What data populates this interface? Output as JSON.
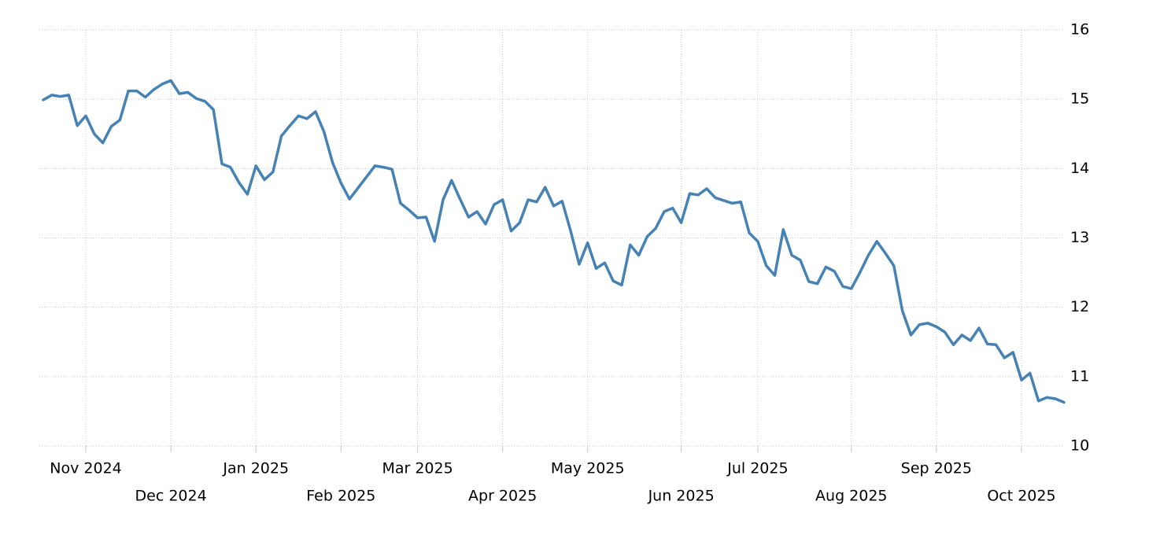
{
  "chart_data": {
    "type": "line",
    "categories": [
      null,
      null,
      null,
      null,
      null,
      "Nov 2024",
      null,
      null,
      null,
      null,
      null,
      null,
      null,
      null,
      null,
      "Dec 2024",
      null,
      null,
      null,
      null,
      null,
      null,
      null,
      null,
      null,
      "Jan 2025",
      null,
      null,
      null,
      null,
      null,
      null,
      null,
      null,
      null,
      "Feb 2025",
      null,
      null,
      null,
      null,
      null,
      null,
      null,
      null,
      "Mar 2025",
      null,
      null,
      null,
      null,
      null,
      null,
      null,
      null,
      null,
      "Apr 2025",
      null,
      null,
      null,
      null,
      null,
      null,
      null,
      null,
      null,
      "May 2025",
      null,
      null,
      null,
      null,
      null,
      null,
      null,
      null,
      null,
      null,
      "Jun 2025",
      null,
      null,
      null,
      null,
      null,
      null,
      null,
      null,
      "Jul 2025",
      null,
      null,
      null,
      null,
      null,
      null,
      null,
      null,
      null,
      null,
      "Aug 2025",
      null,
      null,
      null,
      null,
      null,
      null,
      null,
      null,
      null,
      "Sep 2025",
      null,
      null,
      null,
      null,
      null,
      null,
      null,
      null,
      null,
      "Oct 2025",
      null,
      null,
      null,
      null,
      null
    ],
    "series": [
      {
        "color": "#4682b4",
        "values": [
          14.99,
          15.06,
          15.04,
          15.06,
          14.62,
          14.76,
          14.5,
          14.37,
          14.61,
          14.7,
          15.12,
          15.12,
          15.03,
          15.14,
          15.22,
          15.27,
          15.08,
          15.1,
          15.01,
          14.97,
          14.85,
          14.07,
          14.02,
          13.8,
          13.63,
          14.04,
          13.84,
          13.95,
          14.47,
          14.62,
          14.76,
          14.72,
          14.82,
          14.53,
          14.09,
          13.79,
          13.56,
          13.72,
          13.88,
          14.04,
          14.02,
          13.99,
          13.5,
          13.4,
          13.29,
          13.3,
          12.95,
          13.55,
          13.83,
          13.56,
          13.3,
          13.38,
          13.2,
          13.48,
          13.55,
          13.1,
          13.22,
          13.55,
          13.52,
          13.73,
          13.46,
          13.53,
          13.1,
          12.62,
          12.93,
          12.56,
          12.64,
          12.38,
          12.32,
          12.9,
          12.75,
          13.02,
          13.14,
          13.38,
          13.43,
          13.22,
          13.64,
          13.62,
          13.71,
          13.58,
          13.54,
          13.5,
          13.52,
          13.07,
          12.95,
          12.6,
          12.46,
          13.12,
          12.75,
          12.68,
          12.37,
          12.34,
          12.58,
          12.52,
          12.3,
          12.27,
          12.5,
          12.75,
          12.95,
          12.78,
          12.6,
          11.95,
          11.6,
          11.75,
          11.77,
          11.72,
          11.64,
          11.46,
          11.6,
          11.52,
          11.7,
          11.47,
          11.46,
          11.27,
          11.35,
          10.95,
          11.05,
          10.65,
          10.7,
          10.68,
          10.63
        ]
      }
    ],
    "ylim": [
      10,
      16
    ],
    "yticks": [
      10,
      11,
      12,
      13,
      14,
      15,
      16
    ],
    "grid": true
  }
}
